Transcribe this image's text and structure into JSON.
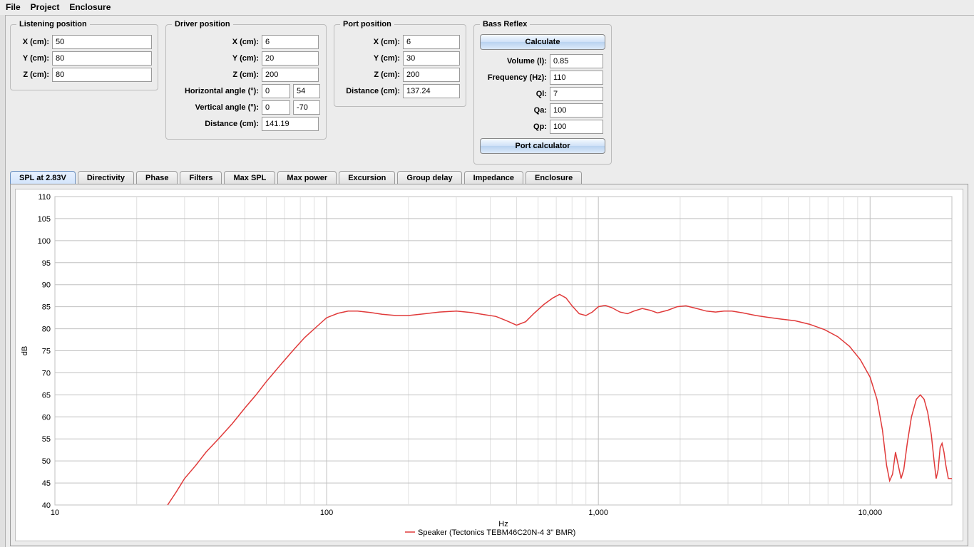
{
  "menu": {
    "file": "File",
    "project": "Project",
    "enclosure": "Enclosure"
  },
  "listening": {
    "legend": "Listening position",
    "x_label": "X (cm):",
    "x": "50",
    "y_label": "Y (cm):",
    "y": "80",
    "z_label": "Z (cm):",
    "z": "80"
  },
  "driver": {
    "legend": "Driver position",
    "x_label": "X (cm):",
    "x": "6",
    "y_label": "Y (cm):",
    "y": "20",
    "z_label": "Z (cm):",
    "z": "200",
    "hang_label": "Horizontal angle (°):",
    "hang": "0",
    "hang_ro": "54",
    "vang_label": "Vertical angle (°):",
    "vang": "0",
    "vang_ro": "-70",
    "dist_label": "Distance (cm):",
    "dist": "141.19"
  },
  "port": {
    "legend": "Port position",
    "x_label": "X (cm):",
    "x": "6",
    "y_label": "Y (cm):",
    "y": "30",
    "z_label": "Z (cm):",
    "z": "200",
    "dist_label": "Distance (cm):",
    "dist": "137.24"
  },
  "bass": {
    "legend": "Bass Reflex",
    "calc_btn": "Calculate",
    "vol_label": "Volume (l):",
    "vol": "0.85",
    "freq_label": "Frequency (Hz):",
    "freq": "110",
    "ql_label": "Ql:",
    "ql": "7",
    "qa_label": "Qa:",
    "qa": "100",
    "qp_label": "Qp:",
    "qp": "100",
    "portcalc_btn": "Port calculator"
  },
  "tabs": {
    "items": [
      "SPL at 2.83V",
      "Directivity",
      "Phase",
      "Filters",
      "Max SPL",
      "Max power",
      "Excursion",
      "Group delay",
      "Impedance",
      "Enclosure"
    ],
    "active": 0
  },
  "chart": {
    "type": "line",
    "x_axis_label": "Hz",
    "y_axis_label": "dB",
    "x_scale": "log",
    "xlim": [
      10,
      20000
    ],
    "ylim": [
      40,
      110
    ],
    "y_tick_step": 5,
    "x_major_ticks": [
      10,
      100,
      1000,
      10000
    ],
    "x_major_labels": [
      "10",
      "100",
      "1,000",
      "10,000"
    ],
    "x_minor_ticks": [
      20,
      30,
      40,
      50,
      60,
      70,
      80,
      90,
      200,
      300,
      400,
      500,
      600,
      700,
      800,
      900,
      2000,
      3000,
      4000,
      5000,
      6000,
      7000,
      8000,
      9000,
      20000
    ],
    "background_color": "#ffffff",
    "grid_color": "#c0c0c0",
    "minor_grid_color": "#e0e0e0",
    "series_color": "#e03a3a",
    "line_width": 1.5,
    "legend_text": "Speaker (Tectonics TEBM46C20N-4 3\" BMR)",
    "points": [
      [
        26,
        40
      ],
      [
        28,
        43
      ],
      [
        30,
        46
      ],
      [
        33,
        49
      ],
      [
        36,
        52
      ],
      [
        40,
        55
      ],
      [
        45,
        58.5
      ],
      [
        50,
        62
      ],
      [
        55,
        65
      ],
      [
        60,
        68
      ],
      [
        67,
        71.5
      ],
      [
        75,
        75
      ],
      [
        83,
        78
      ],
      [
        92,
        80.5
      ],
      [
        100,
        82.5
      ],
      [
        110,
        83.5
      ],
      [
        120,
        84
      ],
      [
        130,
        84
      ],
      [
        145,
        83.7
      ],
      [
        160,
        83.3
      ],
      [
        180,
        83
      ],
      [
        200,
        83
      ],
      [
        230,
        83.4
      ],
      [
        260,
        83.8
      ],
      [
        300,
        84
      ],
      [
        340,
        83.7
      ],
      [
        380,
        83.2
      ],
      [
        420,
        82.8
      ],
      [
        460,
        81.8
      ],
      [
        500,
        80.8
      ],
      [
        540,
        81.6
      ],
      [
        580,
        83.5
      ],
      [
        630,
        85.5
      ],
      [
        680,
        87
      ],
      [
        720,
        87.8
      ],
      [
        760,
        87
      ],
      [
        800,
        85.2
      ],
      [
        850,
        83.4
      ],
      [
        900,
        83
      ],
      [
        950,
        83.8
      ],
      [
        1000,
        85
      ],
      [
        1060,
        85.3
      ],
      [
        1120,
        84.8
      ],
      [
        1200,
        83.8
      ],
      [
        1280,
        83.4
      ],
      [
        1350,
        84
      ],
      [
        1450,
        84.6
      ],
      [
        1550,
        84.2
      ],
      [
        1650,
        83.6
      ],
      [
        1800,
        84.2
      ],
      [
        1950,
        85
      ],
      [
        2100,
        85.2
      ],
      [
        2300,
        84.6
      ],
      [
        2500,
        84
      ],
      [
        2700,
        83.8
      ],
      [
        2900,
        84
      ],
      [
        3100,
        84
      ],
      [
        3400,
        83.6
      ],
      [
        3800,
        83
      ],
      [
        4200,
        82.6
      ],
      [
        4700,
        82.2
      ],
      [
        5300,
        81.8
      ],
      [
        6000,
        81
      ],
      [
        6800,
        79.8
      ],
      [
        7600,
        78.2
      ],
      [
        8400,
        76
      ],
      [
        9200,
        73
      ],
      [
        10000,
        69
      ],
      [
        10600,
        64
      ],
      [
        11100,
        57
      ],
      [
        11500,
        49
      ],
      [
        11800,
        45.5
      ],
      [
        12100,
        47
      ],
      [
        12400,
        52
      ],
      [
        12700,
        49
      ],
      [
        13000,
        46
      ],
      [
        13300,
        48
      ],
      [
        13700,
        54
      ],
      [
        14200,
        60
      ],
      [
        14800,
        64
      ],
      [
        15300,
        65
      ],
      [
        15800,
        64
      ],
      [
        16300,
        61
      ],
      [
        16800,
        56
      ],
      [
        17200,
        50
      ],
      [
        17500,
        46
      ],
      [
        17800,
        48
      ],
      [
        18100,
        53
      ],
      [
        18400,
        54
      ],
      [
        18700,
        52
      ],
      [
        19000,
        49
      ],
      [
        19400,
        46
      ],
      [
        20000,
        46
      ]
    ]
  }
}
